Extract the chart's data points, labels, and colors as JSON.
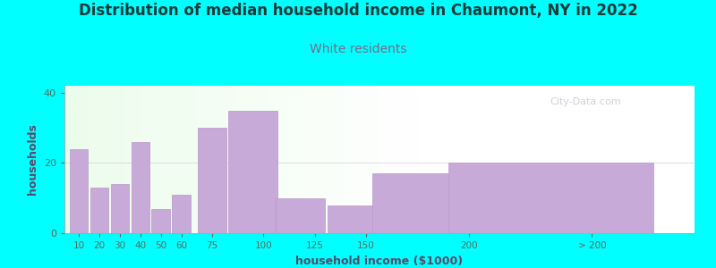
{
  "title": "Distribution of median household income in Chaumont, NY in 2022",
  "subtitle": "White residents",
  "xlabel": "household income ($1000)",
  "ylabel": "households",
  "title_fontsize": 12,
  "subtitle_fontsize": 10,
  "title_color": "#1a3a3a",
  "subtitle_color": "#7a6a8a",
  "ylabel_color": "#5a4a6a",
  "xlabel_color": "#5a4a6a",
  "tick_color": "#5a6a5a",
  "background_color": "#00ffff",
  "bar_color": "#c8aad8",
  "bar_edge_color": "#b898c8",
  "categories": [
    "10",
    "20",
    "30",
    "40",
    "50",
    "60",
    "75",
    "100",
    "125",
    "150",
    "200",
    "> 200"
  ],
  "values": [
    24,
    13,
    14,
    26,
    7,
    11,
    30,
    35,
    10,
    8,
    17,
    20
  ],
  "bar_centers": [
    10,
    20,
    30,
    40,
    50,
    60,
    75,
    95,
    118,
    143,
    175,
    240
  ],
  "bar_widths": [
    9,
    9,
    9,
    9,
    9,
    9,
    14,
    24,
    24,
    24,
    44,
    100
  ],
  "tick_positions": [
    10,
    20,
    30,
    40,
    50,
    60,
    75,
    100,
    125,
    150,
    200,
    260
  ],
  "tick_labels": [
    "10",
    "20",
    "30",
    "40",
    "50",
    "60",
    "75",
    "100",
    "125",
    "150",
    "200",
    "> 200"
  ],
  "xlim": [
    3,
    310
  ],
  "ylim": [
    0,
    42
  ],
  "yticks": [
    0,
    20,
    40
  ],
  "watermark": "City-Data.com"
}
